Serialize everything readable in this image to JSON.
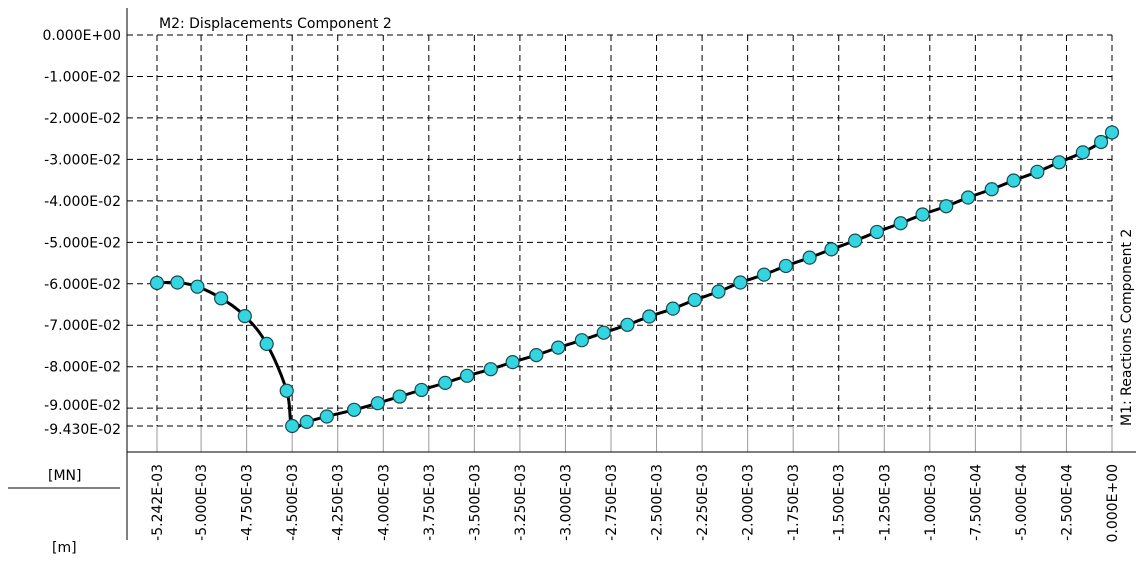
{
  "chart_data": {
    "type": "line",
    "title": "M2: Displacements Component 2",
    "xlabel_unit": "[m]",
    "ylabel_unit": "[MN]",
    "right_label": "M1: Reactions Component 2",
    "x_ticks": [
      -0.005242,
      -0.005,
      -0.00475,
      -0.0045,
      -0.00425,
      -0.004,
      -0.00375,
      -0.0035,
      -0.00325,
      -0.003,
      -0.00275,
      -0.0025,
      -0.00225,
      -0.002,
      -0.00175,
      -0.0015,
      -0.00125,
      -0.001,
      -0.00075,
      -0.0005,
      -0.00025,
      0
    ],
    "x_tick_labels": [
      "-5.242E-03",
      "-5.000E-03",
      "-4.750E-03",
      "-4.500E-03",
      "-4.250E-03",
      "-4.000E-03",
      "-3.750E-03",
      "-3.500E-03",
      "-3.250E-03",
      "-3.000E-03",
      "-2.750E-03",
      "-2.500E-03",
      "-2.250E-03",
      "-2.000E-03",
      "-1.750E-03",
      "-1.500E-03",
      "-1.250E-03",
      "-1.000E-03",
      "-7.500E-04",
      "-5.000E-04",
      "-2.500E-04",
      "0.000E+00"
    ],
    "y_ticks": [
      0,
      -0.01,
      -0.02,
      -0.03,
      -0.04,
      -0.05,
      -0.06,
      -0.07,
      -0.08,
      -0.09,
      -0.0943
    ],
    "y_tick_labels": [
      "0.000E+00",
      "-1.000E-02",
      "-2.000E-02",
      "-3.000E-02",
      "-4.000E-02",
      "-5.000E-02",
      "-6.000E-02",
      "-7.000E-02",
      "-8.000E-02",
      "-9.000E-02",
      "-9.430E-02"
    ],
    "xlim": [
      -0.005242,
      0
    ],
    "ylim": [
      -0.0943,
      0
    ],
    "grid": true,
    "colors": {
      "line": "#000000",
      "marker_fill": "#33d6e0",
      "marker_stroke": "#1a4a50",
      "grid": "#000000"
    },
    "series": [
      {
        "x": [
          -0.005242,
          -0.00513,
          -0.00502,
          -0.00489,
          -0.00476,
          -0.00464,
          -0.00453,
          -0.0045,
          -0.00442,
          -0.00431,
          -0.00416,
          -0.00403,
          -0.00391,
          -0.00379,
          -0.00366,
          -0.00354,
          -0.00341,
          -0.00329,
          -0.00316,
          -0.00304,
          -0.00291,
          -0.00279,
          -0.00266,
          -0.00254,
          -0.00241,
          -0.00229,
          -0.00216,
          -0.00204,
          -0.00191,
          -0.00179,
          -0.00166,
          -0.00154,
          -0.00141,
          -0.00129,
          -0.00116,
          -0.00104,
          -0.00091,
          -0.00079,
          -0.00066,
          -0.00054,
          -0.00041,
          -0.00029,
          -0.00016,
          -6e-05,
          0
        ],
        "y": [
          -0.0598,
          -0.0597,
          -0.0607,
          -0.0635,
          -0.0678,
          -0.0745,
          -0.0858,
          -0.0943,
          -0.0933,
          -0.092,
          -0.0904,
          -0.0888,
          -0.0872,
          -0.0856,
          -0.0839,
          -0.0822,
          -0.0806,
          -0.0789,
          -0.0772,
          -0.0754,
          -0.0736,
          -0.0718,
          -0.0699,
          -0.0679,
          -0.066,
          -0.0639,
          -0.0619,
          -0.0597,
          -0.0578,
          -0.0557,
          -0.0537,
          -0.0517,
          -0.0496,
          -0.0475,
          -0.0454,
          -0.0433,
          -0.0413,
          -0.0392,
          -0.0372,
          -0.0351,
          -0.033,
          -0.0307,
          -0.0283,
          -0.0258,
          -0.0235
        ]
      }
    ]
  }
}
